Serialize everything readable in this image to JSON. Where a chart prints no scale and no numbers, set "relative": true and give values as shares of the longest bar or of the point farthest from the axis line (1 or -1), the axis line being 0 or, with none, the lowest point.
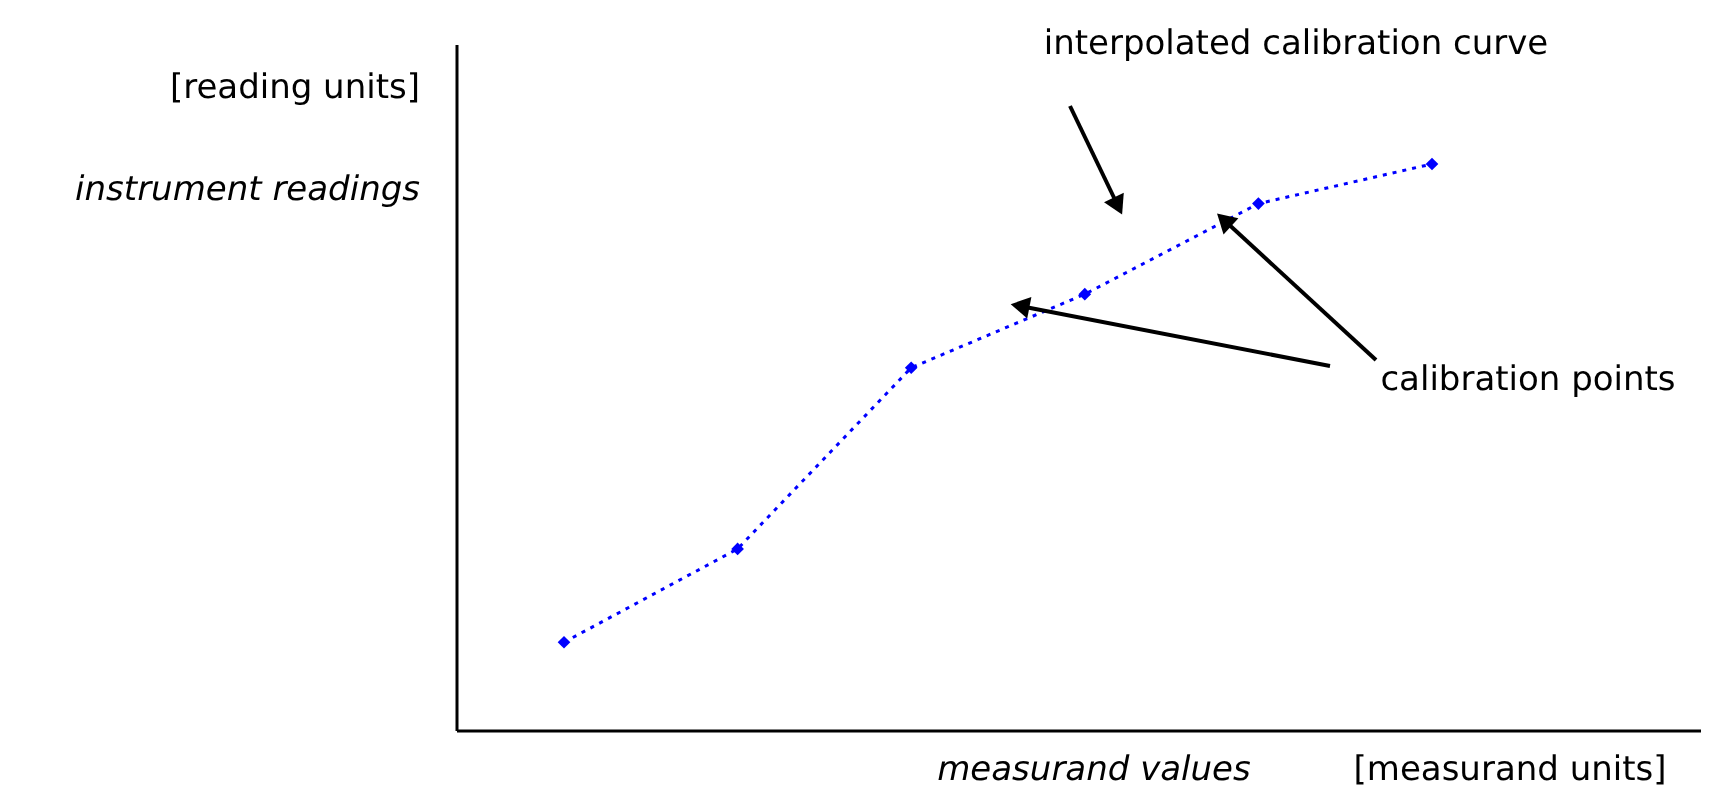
{
  "chart_data": {
    "type": "line",
    "xlabel": "measurand values",
    "ylabel": "instrument readings",
    "categories": [
      null,
      null,
      null,
      null,
      null,
      null
    ],
    "series": [
      {
        "color": "#0000ff",
        "values": [
          0.155,
          0.32,
          0.64,
          0.77,
          0.93,
          1.0
        ]
      }
    ],
    "relative": true,
    "marker": "diamond",
    "line_style": "dotted",
    "annotations": [
      "[reading units]",
      "[measurand units]",
      "interpolated calibration curve",
      "calibration points"
    ]
  }
}
